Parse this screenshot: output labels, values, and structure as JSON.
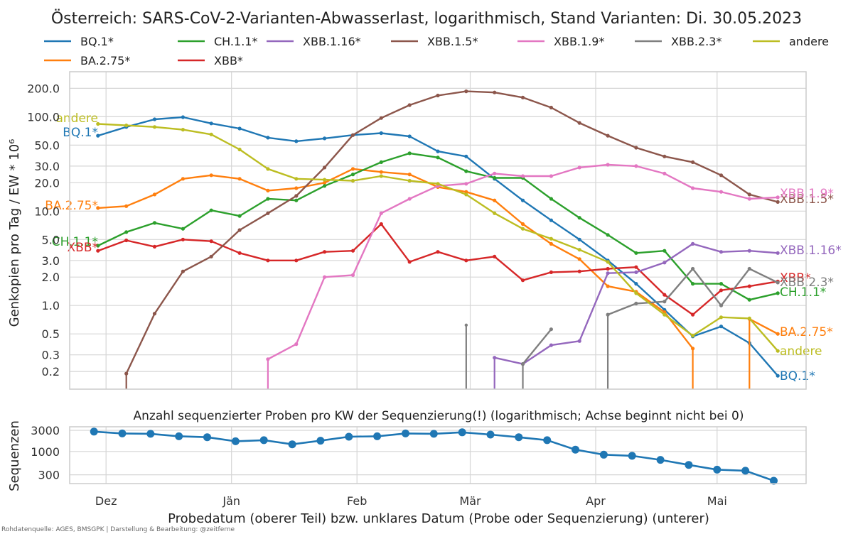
{
  "chart_data": [
    {
      "type": "line",
      "title": "Österreich: SARS-CoV-2-Varianten-Abwasserlast, logarithmisch, Stand Varianten: Di. 30.05.2023",
      "ylabel": "Genkopien pro Tag / EW * 10⁶",
      "yscale": "log",
      "ylim": [
        0.13,
        300
      ],
      "xlim": [
        "2022-11-22",
        "2023-05-23"
      ],
      "grid": true,
      "legend": "top",
      "y_ticks": [
        {
          "v": 0.2,
          "label": "0.2"
        },
        {
          "v": 0.3,
          "label": "0.3"
        },
        {
          "v": 0.5,
          "label": "0.5"
        },
        {
          "v": 1,
          "label": "1.0"
        },
        {
          "v": 2,
          "label": "2.0"
        },
        {
          "v": 3,
          "label": "3.0"
        },
        {
          "v": 5,
          "label": "5.0"
        },
        {
          "v": 10,
          "label": "10.0"
        },
        {
          "v": 20,
          "label": "20.0"
        },
        {
          "v": 30,
          "label": "30.0"
        },
        {
          "v": 50,
          "label": "50.0"
        },
        {
          "v": 100,
          "label": "100.0"
        },
        {
          "v": 200,
          "label": "200.0"
        }
      ],
      "x": [
        "2022-11-29",
        "2022-12-06",
        "2022-12-13",
        "2022-12-20",
        "2022-12-27",
        "2023-01-03",
        "2023-01-10",
        "2023-01-17",
        "2023-01-24",
        "2023-01-31",
        "2023-02-07",
        "2023-02-14",
        "2023-02-21",
        "2023-02-28",
        "2023-03-07",
        "2023-03-14",
        "2023-03-21",
        "2023-03-28",
        "2023-04-04",
        "2023-04-11",
        "2023-04-18",
        "2023-04-25",
        "2023-05-02",
        "2023-05-09",
        "2023-05-16"
      ],
      "series": [
        {
          "name": "BQ.1*",
          "color": "#1f77b4",
          "end_label": "BQ.1*",
          "values": [
            63,
            78,
            94,
            99,
            85,
            75,
            60,
            55,
            59,
            64,
            67,
            62,
            43,
            38,
            22,
            13,
            8,
            5,
            3,
            1.7,
            0.9,
            0.47,
            0.6,
            0.4,
            0.18
          ]
        },
        {
          "name": "BA.2.75*",
          "color": "#ff7f0e",
          "end_label": "BA.2.75*",
          "values": [
            10.8,
            11.3,
            15,
            22,
            24,
            22,
            16.5,
            17.5,
            20,
            28,
            26,
            24.5,
            18,
            16,
            13,
            7.3,
            4.5,
            3.1,
            1.6,
            1.4,
            0.85,
            0.35,
            null,
            0.72,
            0.5
          ],
          "drops": [
            "2023-04-25",
            "2023-05-09"
          ]
        },
        {
          "name": "CH.1.1*",
          "color": "#2ca02c",
          "end_label": "CH.1.1*",
          "values": [
            4.3,
            6,
            7.5,
            6.5,
            10.2,
            8.9,
            13.5,
            13,
            18.5,
            24.5,
            33,
            41,
            37,
            26.5,
            22.5,
            22.5,
            13.5,
            8.5,
            5.6,
            3.6,
            3.8,
            1.7,
            1.7,
            1.15,
            1.35
          ]
        },
        {
          "name": "XBB*",
          "color": "#d62728",
          "end_label": "XBB*",
          "values": [
            3.8,
            4.9,
            4.2,
            5,
            4.8,
            3.6,
            3,
            3,
            3.7,
            3.8,
            7.3,
            2.9,
            3.7,
            3,
            3.3,
            1.85,
            2.25,
            2.3,
            2.45,
            2.55,
            1.3,
            0.8,
            1.45,
            1.6,
            1.8
          ]
        },
        {
          "name": "XBB.1.16*",
          "color": "#9467bd",
          "end_label": "XBB.1.16*",
          "values": [
            null,
            null,
            null,
            null,
            null,
            null,
            null,
            null,
            null,
            null,
            null,
            null,
            null,
            null,
            0.28,
            0.24,
            0.38,
            0.42,
            2.2,
            2.25,
            2.85,
            4.5,
            3.7,
            3.8,
            3.6
          ],
          "drops": [
            "2023-03-07"
          ]
        },
        {
          "name": "XBB.1.5*",
          "color": "#8c564b",
          "end_label": "XBB.1.5*",
          "values": [
            null,
            0.19,
            0.82,
            2.3,
            3.3,
            6.3,
            9.5,
            14.5,
            29,
            64,
            97,
            133,
            168,
            186,
            181,
            160,
            125,
            86,
            63,
            47,
            38,
            33,
            24,
            15,
            12.5
          ],
          "drops": [
            "2022-12-06"
          ]
        },
        {
          "name": "XBB.1.9*",
          "color": "#e377c2",
          "end_label": "XBB.1.9*",
          "values": [
            null,
            null,
            null,
            null,
            null,
            null,
            0.27,
            0.39,
            2,
            2.1,
            9.5,
            13.5,
            18.5,
            19.5,
            25,
            23.5,
            23.5,
            29,
            31,
            30,
            25,
            17.5,
            16,
            13.5,
            14
          ],
          "drops": [
            "2023-01-10"
          ]
        },
        {
          "name": "XBB.2.3*",
          "color": "#7f7f7f",
          "end_label": "XBB.2.3*",
          "values": [
            null,
            null,
            null,
            null,
            null,
            null,
            null,
            null,
            null,
            null,
            null,
            null,
            null,
            null,
            null,
            0.24,
            0.56,
            null,
            0.8,
            1.05,
            1.1,
            2.45,
            1,
            2.45,
            1.75
          ],
          "drops": [
            "2023-03-14",
            "2023-04-04"
          ],
          "spikes": [
            {
              "x": "2023-02-28",
              "v": 0.62
            }
          ]
        },
        {
          "name": "andere",
          "color": "#bcbd22",
          "end_label": "andere",
          "values": [
            84,
            81,
            78,
            73,
            65,
            45,
            28,
            22,
            21.5,
            21,
            23.5,
            21,
            19.5,
            15,
            9.5,
            6.5,
            5.1,
            3.9,
            2.9,
            1.35,
            0.8,
            0.48,
            0.75,
            0.73,
            0.33
          ]
        }
      ],
      "start_labels": [
        {
          "name": "andere",
          "text": "andere",
          "color": "#bcbd22"
        },
        {
          "name": "BQ.1*",
          "text": "BQ.1*",
          "color": "#1f77b4"
        },
        {
          "name": "BA.2.75*",
          "text": "BA.2.75*",
          "color": "#ff7f0e"
        },
        {
          "name": "CH.1.1*",
          "text": "CH.1.1*",
          "color": "#2ca02c"
        },
        {
          "name": "XBB*",
          "text": "XBB*",
          "color": "#d62728"
        }
      ]
    },
    {
      "type": "line",
      "title": "Anzahl sequenzierter Proben pro KW der Sequenzierung(!) (logarithmisch; Achse beginnt nicht bei 0)",
      "ylabel": "Sequenzen",
      "yscale": "log",
      "ylim": [
        190,
        3600
      ],
      "y_ticks": [
        {
          "v": 300,
          "label": "300"
        },
        {
          "v": 1000,
          "label": "1000"
        },
        {
          "v": 3000,
          "label": "3000"
        }
      ],
      "color": "#1f77b4",
      "x": [
        "2022-11-28",
        "2022-12-05",
        "2022-12-12",
        "2022-12-19",
        "2022-12-26",
        "2023-01-02",
        "2023-01-09",
        "2023-01-16",
        "2023-01-23",
        "2023-01-30",
        "2023-02-06",
        "2023-02-13",
        "2023-02-20",
        "2023-02-27",
        "2023-03-06",
        "2023-03-13",
        "2023-03-20",
        "2023-03-27",
        "2023-04-03",
        "2023-04-10",
        "2023-04-17",
        "2023-04-24",
        "2023-05-01",
        "2023-05-08",
        "2023-05-15"
      ],
      "values": [
        2800,
        2550,
        2500,
        2200,
        2100,
        1700,
        1800,
        1450,
        1750,
        2150,
        2200,
        2550,
        2500,
        2700,
        2400,
        2100,
        1800,
        1100,
        850,
        800,
        650,
        500,
        390,
        370,
        220
      ]
    }
  ],
  "x_axis": {
    "ticks": [
      {
        "date": "2022-12-01",
        "label": "Dez"
      },
      {
        "date": "2023-01-01",
        "label": "Jän"
      },
      {
        "date": "2023-02-01",
        "label": "Feb"
      },
      {
        "date": "2023-03-01",
        "label": "Mär"
      },
      {
        "date": "2023-04-01",
        "label": "Apr"
      },
      {
        "date": "2023-05-01",
        "label": "Mai"
      }
    ],
    "label": "Probedatum (oberer Teil) bzw. unklares Datum (Probe oder Sequenzierung) (unterer)"
  },
  "source": "Rohdatenquelle: AGES, BMSGPK | Darstellung & Bearbeitung: @zeitferne"
}
